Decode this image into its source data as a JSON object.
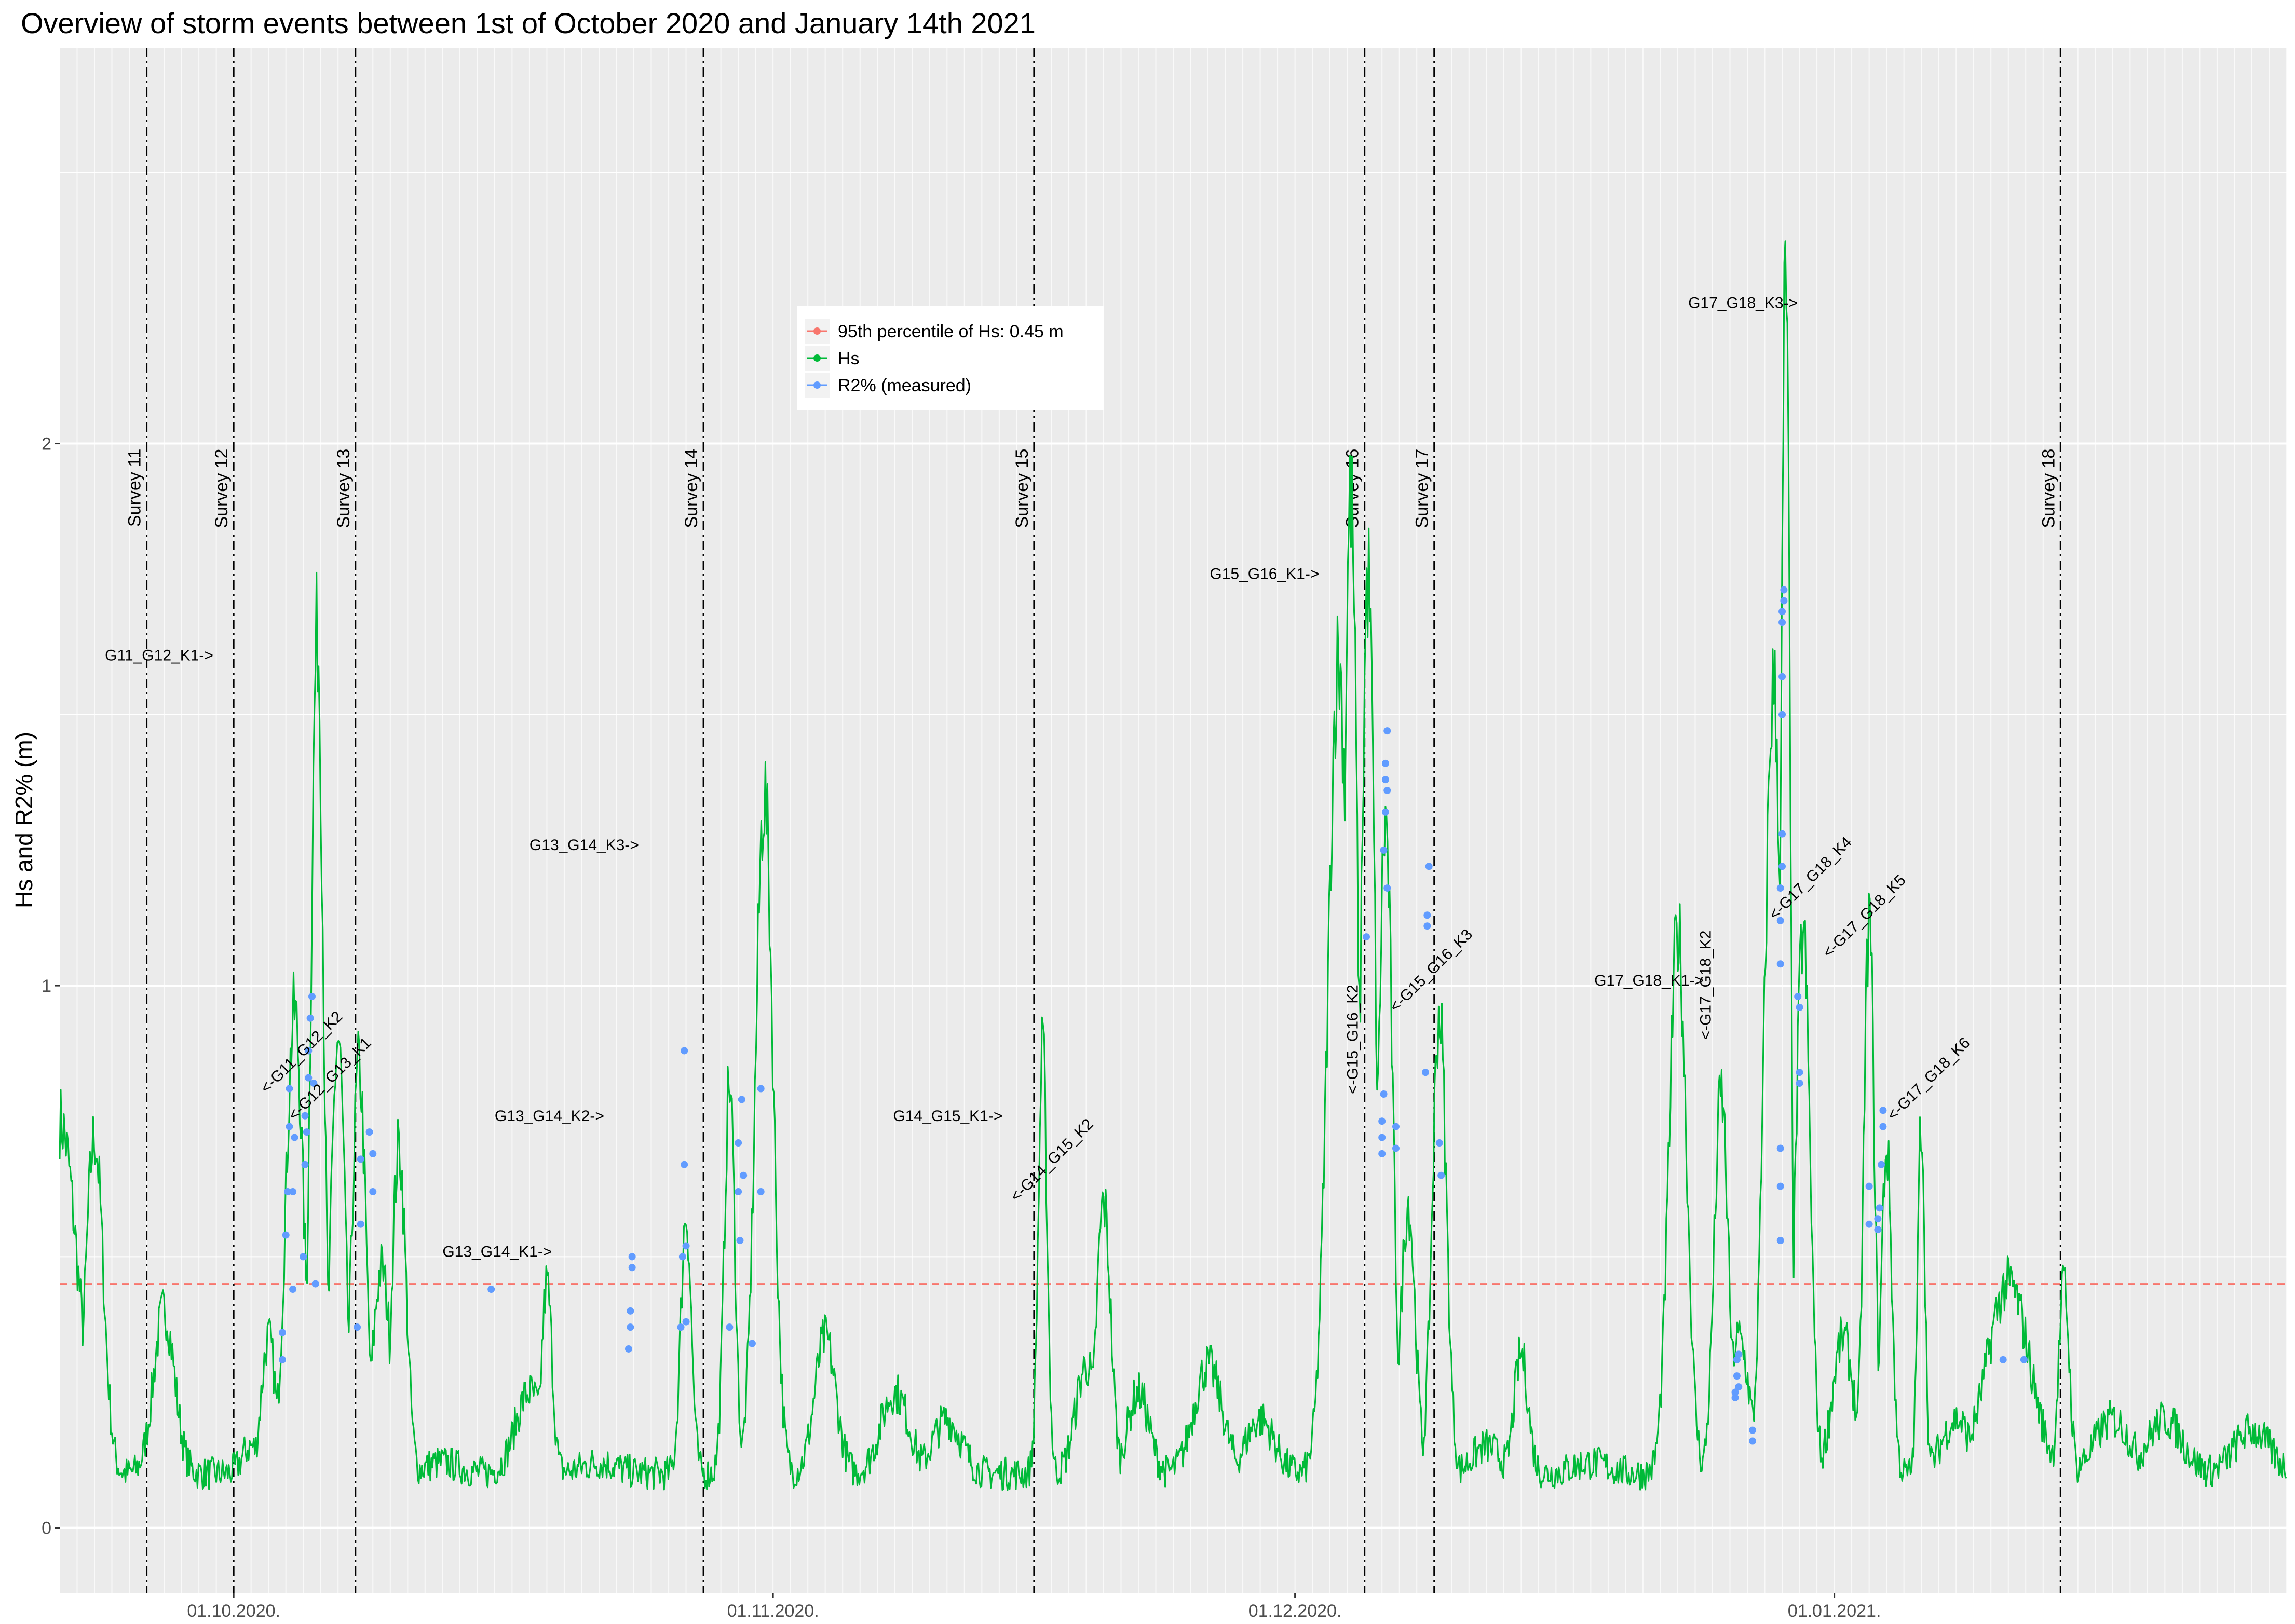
{
  "chart_data": {
    "type": "line",
    "title": "Overview of storm events between 1st of October 2020 and January 14th 2021",
    "xlabel": "",
    "ylabel": "Hs and R2% (m)",
    "xlim": [
      "2020-09-21",
      "2021-01-27"
    ],
    "ylim": [
      -0.12,
      2.73
    ],
    "y_ticks": [
      0,
      1,
      2
    ],
    "y_tick_labels": [
      "0",
      "1",
      "2"
    ],
    "x_ticks": [
      "2020-10-01",
      "2020-11-01",
      "2020-12-01",
      "2021-01-01"
    ],
    "x_tick_labels": [
      "01.10.2020.",
      "01.11.2020.",
      "01.12.2020.",
      "01.01.2021."
    ],
    "grid": true,
    "legend_position": "inside-top-center",
    "colors": {
      "threshold": "#F8766D",
      "hs": "#00BA38",
      "r2": "#619CFF",
      "panel": "#EBEBEB",
      "grid": "#FFFFFF"
    },
    "series": [
      {
        "name": "95th percentile of Hs: 0.45 m",
        "kind": "hline",
        "value": 0.45
      },
      {
        "name": "Hs",
        "kind": "line",
        "baseline": 0.1,
        "peaks": [
          {
            "x": "2020-09-21",
            "y": 0.75,
            "w": 1.0
          },
          {
            "x": "2020-09-23",
            "y": 0.72,
            "w": 0.5
          },
          {
            "x": "2020-09-27",
            "y": 0.4,
            "w": 0.6
          },
          {
            "x": "2020-10-02",
            "y": 0.15,
            "w": 0.5
          },
          {
            "x": "2020-10-03",
            "y": 0.35,
            "w": 0.4
          },
          {
            "x": "2020-10-04.5",
            "y": 0.95,
            "w": 0.5
          },
          {
            "x": "2020-10-05.8",
            "y": 1.65,
            "w": 0.35
          },
          {
            "x": "2020-10-07",
            "y": 0.9,
            "w": 0.4
          },
          {
            "x": "2020-10-08.2",
            "y": 0.85,
            "w": 0.4
          },
          {
            "x": "2020-10-09.5",
            "y": 0.48,
            "w": 0.5
          },
          {
            "x": "2020-10-10.5",
            "y": 0.7,
            "w": 0.4
          },
          {
            "x": "2020-10-13",
            "y": 0.12,
            "w": 1.0
          },
          {
            "x": "2020-10-18",
            "y": 0.25,
            "w": 0.8
          },
          {
            "x": "2020-10-19",
            "y": 0.45,
            "w": 0.3
          },
          {
            "x": "2020-10-22",
            "y": 0.12,
            "w": 1.0
          },
          {
            "x": "2020-10-27",
            "y": 0.58,
            "w": 0.3
          },
          {
            "x": "2020-10-29.5",
            "y": 0.82,
            "w": 0.3
          },
          {
            "x": "2020-10-31.5",
            "y": 1.35,
            "w": 0.5
          },
          {
            "x": "2020-11-05",
            "y": 0.1,
            "w": 1.0
          },
          {
            "x": "2020-11-04",
            "y": 0.35,
            "w": 0.6
          },
          {
            "x": "2020-11-08",
            "y": 0.25,
            "w": 0.8
          },
          {
            "x": "2020-11-11",
            "y": 0.2,
            "w": 0.8
          },
          {
            "x": "2020-11-15",
            "y": 0.1,
            "w": 1.0
          },
          {
            "x": "2020-11-16.5",
            "y": 0.88,
            "w": 0.25
          },
          {
            "x": "2020-11-19",
            "y": 0.3,
            "w": 0.6
          },
          {
            "x": "2020-11-20",
            "y": 0.6,
            "w": 0.4
          },
          {
            "x": "2020-11-22",
            "y": 0.25,
            "w": 0.6
          },
          {
            "x": "2020-11-26",
            "y": 0.3,
            "w": 0.8
          },
          {
            "x": "2020-11-29",
            "y": 0.2,
            "w": 0.8
          },
          {
            "x": "2020-12-03.5",
            "y": 1.6,
            "w": 0.6
          },
          {
            "x": "2020-12-04.2",
            "y": 1.9,
            "w": 0.4
          },
          {
            "x": "2020-12-05.2",
            "y": 1.75,
            "w": 0.4
          },
          {
            "x": "2020-12-06.2",
            "y": 1.3,
            "w": 0.4
          },
          {
            "x": "2020-12-07.5",
            "y": 0.6,
            "w": 0.4
          },
          {
            "x": "2020-12-09.3",
            "y": 0.95,
            "w": 0.4
          },
          {
            "x": "2020-12-12",
            "y": 0.15,
            "w": 0.8
          },
          {
            "x": "2020-12-14",
            "y": 0.32,
            "w": 0.4
          },
          {
            "x": "2020-12-18",
            "y": 0.12,
            "w": 1.0
          },
          {
            "x": "2020-12-23",
            "y": 1.1,
            "w": 0.5
          },
          {
            "x": "2020-12-25.5",
            "y": 0.8,
            "w": 0.4
          },
          {
            "x": "2020-12-26.5",
            "y": 0.35,
            "w": 0.6
          },
          {
            "x": "2020-12-28.5",
            "y": 1.55,
            "w": 0.5
          },
          {
            "x": "2020-12-29.2",
            "y": 2.32,
            "w": 0.25
          },
          {
            "x": "2020-12-30.2",
            "y": 1.1,
            "w": 0.4
          },
          {
            "x": "2021-01-01.5",
            "y": 0.35,
            "w": 0.6
          },
          {
            "x": "2021-01-03",
            "y": 1.12,
            "w": 0.3
          },
          {
            "x": "2021-01-04",
            "y": 0.7,
            "w": 0.3
          },
          {
            "x": "2021-01-06",
            "y": 0.76,
            "w": 0.2
          },
          {
            "x": "2021-01-08",
            "y": 0.2,
            "w": 0.8
          },
          {
            "x": "2021-01-11",
            "y": 0.45,
            "w": 1.2
          },
          {
            "x": "2021-01-13",
            "y": 0.1,
            "w": 0.6
          },
          {
            "x": "2021-01-14.2",
            "y": 0.45,
            "w": 0.3
          },
          {
            "x": "2021-01-17",
            "y": 0.2,
            "w": 1.0
          },
          {
            "x": "2021-01-20",
            "y": 0.2,
            "w": 1.0
          },
          {
            "x": "2021-01-25",
            "y": 0.18,
            "w": 1.0
          }
        ]
      },
      {
        "name": "R2% (measured)",
        "kind": "points",
        "points": [
          [
            "2020-10-03.8",
            0.31
          ],
          [
            "2020-10-03.8",
            0.36
          ],
          [
            "2020-10-04.0",
            0.54
          ],
          [
            "2020-10-04.1",
            0.62
          ],
          [
            "2020-10-04.2",
            0.74
          ],
          [
            "2020-10-04.2",
            0.81
          ],
          [
            "2020-10-04.4",
            0.44
          ],
          [
            "2020-10-04.4",
            0.62
          ],
          [
            "2020-10-04.5",
            0.72
          ],
          [
            "2020-10-05.0",
            0.5
          ],
          [
            "2020-10-05.1",
            0.67
          ],
          [
            "2020-10-05.1",
            0.76
          ],
          [
            "2020-10-05.2",
            0.73
          ],
          [
            "2020-10-05.3",
            0.83
          ],
          [
            "2020-10-05.3",
            0.88
          ],
          [
            "2020-10-05.4",
            0.94
          ],
          [
            "2020-10-05.5",
            0.98
          ],
          [
            "2020-10-05.6",
            0.82
          ],
          [
            "2020-10-05.7",
            0.45
          ],
          [
            "2020-10-08.1",
            0.37
          ],
          [
            "2020-10-08.3",
            0.56
          ],
          [
            "2020-10-08.3",
            0.68
          ],
          [
            "2020-10-08.8",
            0.73
          ],
          [
            "2020-10-09.0",
            0.62
          ],
          [
            "2020-10-09.0",
            0.69
          ],
          [
            "2020-10-15.8",
            0.44
          ],
          [
            "2020-10-23.7",
            0.33
          ],
          [
            "2020-10-23.8",
            0.37
          ],
          [
            "2020-10-23.8",
            0.4
          ],
          [
            "2020-10-23.9",
            0.48
          ],
          [
            "2020-10-23.9",
            0.5
          ],
          [
            "2020-10-26.7",
            0.37
          ],
          [
            "2020-10-26.8",
            0.5
          ],
          [
            "2020-10-26.9",
            0.67
          ],
          [
            "2020-10-26.9",
            0.88
          ],
          [
            "2020-10-27.0",
            0.52
          ],
          [
            "2020-10-27.0",
            0.38
          ],
          [
            "2020-10-29.5",
            0.37
          ],
          [
            "2020-10-30.0",
            0.62
          ],
          [
            "2020-10-30.0",
            0.71
          ],
          [
            "2020-10-30.1",
            0.53
          ],
          [
            "2020-10-30.2",
            0.79
          ],
          [
            "2020-10-30.3",
            0.65
          ],
          [
            "2020-10-30.8",
            0.34
          ],
          [
            "2020-10-31.3",
            0.62
          ],
          [
            "2020-10-31.3",
            0.81
          ],
          [
            "2020-12-05.1",
            1.09
          ],
          [
            "2020-12-06.0",
            0.69
          ],
          [
            "2020-12-06.0",
            0.72
          ],
          [
            "2020-12-06.0",
            0.75
          ],
          [
            "2020-12-06.1",
            0.8
          ],
          [
            "2020-12-06.1",
            1.25
          ],
          [
            "2020-12-06.2",
            1.32
          ],
          [
            "2020-12-06.2",
            1.38
          ],
          [
            "2020-12-06.2",
            1.41
          ],
          [
            "2020-12-06.3",
            1.36
          ],
          [
            "2020-12-06.3",
            1.47
          ],
          [
            "2020-12-06.3",
            1.18
          ],
          [
            "2020-12-06.8",
            0.7
          ],
          [
            "2020-12-06.8",
            0.74
          ],
          [
            "2020-12-08.5",
            0.84
          ],
          [
            "2020-12-08.6",
            1.13
          ],
          [
            "2020-12-08.6",
            1.11
          ],
          [
            "2020-12-08.7",
            1.22
          ],
          [
            "2020-12-09.3",
            0.71
          ],
          [
            "2020-12-09.4",
            0.65
          ],
          [
            "2020-12-26.3",
            0.24
          ],
          [
            "2020-12-26.3",
            0.25
          ],
          [
            "2020-12-26.4",
            0.28
          ],
          [
            "2020-12-26.4",
            0.31
          ],
          [
            "2020-12-26.5",
            0.32
          ],
          [
            "2020-12-26.5",
            0.26
          ],
          [
            "2020-12-27.3",
            0.18
          ],
          [
            "2020-12-27.3",
            0.16
          ],
          [
            "2020-12-28.9",
            0.53
          ],
          [
            "2020-12-28.9",
            0.63
          ],
          [
            "2020-12-28.9",
            0.7
          ],
          [
            "2020-12-28.9",
            1.04
          ],
          [
            "2020-12-28.9",
            1.12
          ],
          [
            "2020-12-28.9",
            1.18
          ],
          [
            "2020-12-29.0",
            1.22
          ],
          [
            "2020-12-29.0",
            1.28
          ],
          [
            "2020-12-29.0",
            1.5
          ],
          [
            "2020-12-29.0",
            1.57
          ],
          [
            "2020-12-29.0",
            1.67
          ],
          [
            "2020-12-29.0",
            1.69
          ],
          [
            "2020-12-29.1",
            1.71
          ],
          [
            "2020-12-29.1",
            1.73
          ],
          [
            "2020-12-29.9",
            0.98
          ],
          [
            "2020-12-30.0",
            0.96
          ],
          [
            "2020-12-30.0",
            0.84
          ],
          [
            "2020-12-30.0",
            0.82
          ],
          [
            "2021-01-03.0",
            0.56
          ],
          [
            "2021-01-03.0",
            0.63
          ],
          [
            "2021-01-03.5",
            0.55
          ],
          [
            "2021-01-03.5",
            0.57
          ],
          [
            "2021-01-03.6",
            0.59
          ],
          [
            "2021-01-03.7",
            0.67
          ],
          [
            "2021-01-03.8",
            0.74
          ],
          [
            "2021-01-03.8",
            0.77
          ],
          [
            "2021-01-10.7",
            0.31
          ],
          [
            "2021-01-11.9",
            0.31
          ]
        ]
      }
    ],
    "surveys": [
      {
        "label": "Survey 11",
        "x": "2020-09-26"
      },
      {
        "label": "Survey 12",
        "x": "2020-10-01"
      },
      {
        "label": "Survey 13",
        "x": "2020-10-08"
      },
      {
        "label": "Survey 14",
        "x": "2020-10-28"
      },
      {
        "label": "Survey 15",
        "x": "2020-11-16"
      },
      {
        "label": "Survey 16",
        "x": "2020-12-05"
      },
      {
        "label": "Survey 17",
        "x": "2020-12-09"
      },
      {
        "label": "Survey 18",
        "x": "2021-01-14"
      }
    ],
    "annotations": [
      {
        "text": "G11_G12_K1->",
        "x": "2020-09-23.6",
        "y": 1.6,
        "angle": 0
      },
      {
        "text": "<-G11_G12_K2",
        "x": "2020-10-02.9",
        "y": 0.8,
        "angle": -45
      },
      {
        "text": "<-G12_G13_K1",
        "x": "2020-10-04.5",
        "y": 0.75,
        "angle": -45
      },
      {
        "text": "G13_G14_K1->",
        "x": "2020-10-13.0",
        "y": 0.5,
        "angle": 0
      },
      {
        "text": "G13_G14_K2->",
        "x": "2020-10-16.0",
        "y": 0.75,
        "angle": 0
      },
      {
        "text": "G13_G14_K3->",
        "x": "2020-10-18.0",
        "y": 1.25,
        "angle": 0
      },
      {
        "text": "G14_G15_K1->",
        "x": "2020-11-07.9",
        "y": 0.75,
        "angle": 0
      },
      {
        "text": "<-G14_G15_K2",
        "x": "2020-11-15.0",
        "y": 0.6,
        "angle": -45
      },
      {
        "text": "G15_G16_K1->",
        "x": "2020-11-26.1",
        "y": 1.75,
        "angle": 0
      },
      {
        "text": "<-G15_G16_K2",
        "x": "2020-12-04.6",
        "y": 0.8,
        "angle": -90
      },
      {
        "text": "<-G15_G16_K3",
        "x": "2020-12-06.8",
        "y": 0.95,
        "angle": -45
      },
      {
        "text": "G17_G18_K1->",
        "x": "2020-12-18.2",
        "y": 1.0,
        "angle": 0
      },
      {
        "text": "<-G17_G18_K2",
        "x": "2020-12-24.9",
        "y": 0.9,
        "angle": -90
      },
      {
        "text": "G17_G18_K3->",
        "x": "2020-12-23.6",
        "y": 2.25,
        "angle": 0
      },
      {
        "text": "<-G17_G18_K4",
        "x": "2020-12-28.6",
        "y": 1.12,
        "angle": -45
      },
      {
        "text": "<-G17_G18_K5",
        "x": "2020-12-31.7",
        "y": 1.05,
        "angle": -45
      },
      {
        "text": "<-G17_G18_K6",
        "x": "2021-01-04.4",
        "y": 0.75,
        "angle": -45
      }
    ]
  }
}
